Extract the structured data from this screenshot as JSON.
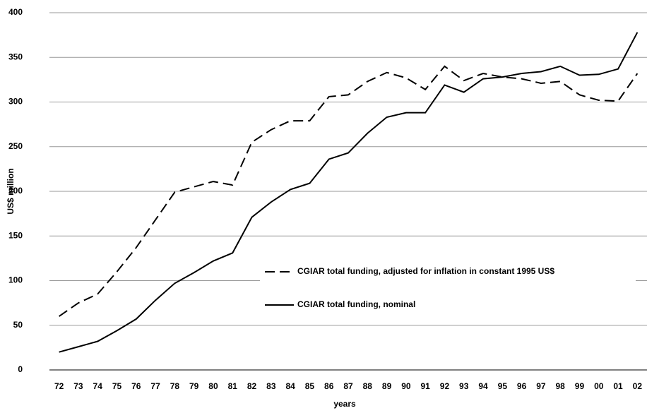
{
  "chart_data": {
    "type": "line",
    "y_label": "US$ million",
    "x_label": "years",
    "categories": [
      "72",
      "73",
      "74",
      "75",
      "76",
      "77",
      "78",
      "79",
      "80",
      "81",
      "82",
      "83",
      "84",
      "85",
      "86",
      "87",
      "88",
      "89",
      "90",
      "91",
      "92",
      "93",
      "94",
      "95",
      "96",
      "97",
      "98",
      "99",
      "00",
      "01",
      "02"
    ],
    "series": [
      {
        "name": "CGIAR total funding, adjusted for inflation in constant 1995 US$",
        "color": "#000000",
        "dash": true,
        "values": [
          60,
          75,
          85,
          110,
          137,
          168,
          199,
          205,
          211,
          207,
          255,
          269,
          279,
          279,
          306,
          308,
          323,
          333,
          327,
          314,
          340,
          324,
          332,
          328,
          326,
          321,
          323,
          308,
          302,
          301,
          332
        ]
      },
      {
        "name": "CGIAR total funding, nominal",
        "color": "#000000",
        "dash": false,
        "values": [
          20,
          26,
          32,
          44,
          57,
          78,
          97,
          109,
          122,
          131,
          171,
          188,
          202,
          209,
          236,
          243,
          265,
          283,
          288,
          288,
          319,
          311,
          326,
          328,
          332,
          334,
          340,
          330,
          331,
          337,
          378
        ]
      }
    ],
    "ylim": [
      0,
      400
    ],
    "yticks": [
      0,
      50,
      100,
      150,
      200,
      250,
      300,
      350,
      400
    ],
    "grid": true
  }
}
